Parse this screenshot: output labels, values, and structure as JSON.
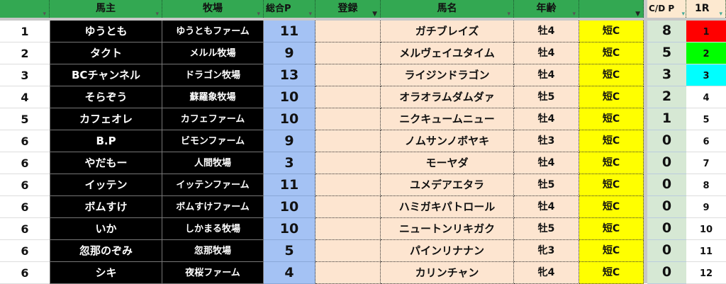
{
  "header": {
    "rank": "",
    "owner": "馬主",
    "farm": "牧場",
    "total_p": "総合P",
    "registration": "登録",
    "horse_name": "馬名",
    "age": "年齢",
    "class": "",
    "cd_p": "C/D P",
    "race_1r": "1R"
  },
  "colors": {
    "header_bg": "#33a852",
    "owner_bg": "#000000",
    "total_bg": "#a4c2f4",
    "name_bg": "#fde5d0",
    "class_bg": "#ffff00",
    "cd_bg": "#d6e8d4",
    "rank1": "#ff0000",
    "rank2": "#00ff00",
    "rank3": "#00ffff"
  },
  "rows": [
    {
      "rank": "1",
      "owner": "ゆうとも",
      "farm": "ゆうともファーム",
      "total_p": "11",
      "registration": "",
      "horse_name": "ガチブレイズ",
      "age": "牡4",
      "class": "短C",
      "cd_p": "8",
      "race_1r": "1",
      "highlight": "#ff0000"
    },
    {
      "rank": "2",
      "owner": "タクト",
      "farm": "メルル牧場",
      "total_p": "9",
      "registration": "",
      "horse_name": "メルヴェイユタイム",
      "age": "牡4",
      "class": "短C",
      "cd_p": "5",
      "race_1r": "2",
      "highlight": "#00ff00"
    },
    {
      "rank": "3",
      "owner": "BCチャンネル",
      "farm": "ドラゴン牧場",
      "total_p": "13",
      "registration": "",
      "horse_name": "ライジンドラゴン",
      "age": "牡4",
      "class": "短C",
      "cd_p": "3",
      "race_1r": "3",
      "highlight": "#00ffff"
    },
    {
      "rank": "4",
      "owner": "そらぞう",
      "farm": "蘇羅象牧場",
      "total_p": "10",
      "registration": "",
      "horse_name": "オラオラムダムダァ",
      "age": "牡5",
      "class": "短C",
      "cd_p": "2",
      "race_1r": "4"
    },
    {
      "rank": "5",
      "owner": "カフェオレ",
      "farm": "カフェファーム",
      "total_p": "10",
      "registration": "",
      "horse_name": "ニクキュームニュー",
      "age": "牡4",
      "class": "短C",
      "cd_p": "1",
      "race_1r": "5"
    },
    {
      "rank": "6",
      "owner": "B.P",
      "farm": "ビモンファーム",
      "total_p": "9",
      "registration": "",
      "horse_name": "ノムサンノボヤキ",
      "age": "牡3",
      "class": "短C",
      "cd_p": "0",
      "race_1r": "6"
    },
    {
      "rank": "6",
      "owner": "やだもー",
      "farm": "人間牧場",
      "total_p": "3",
      "registration": "",
      "horse_name": "モーヤダ",
      "age": "牡4",
      "class": "短C",
      "cd_p": "0",
      "race_1r": "7"
    },
    {
      "rank": "6",
      "owner": "イッテン",
      "farm": "イッテンファーム",
      "total_p": "11",
      "registration": "",
      "horse_name": "ユメデアエタラ",
      "age": "牡5",
      "class": "短C",
      "cd_p": "0",
      "race_1r": "8"
    },
    {
      "rank": "6",
      "owner": "ボムすけ",
      "farm": "ボムすけファーム",
      "total_p": "10",
      "registration": "",
      "horse_name": "ハミガキパトロール",
      "age": "牡4",
      "class": "短C",
      "cd_p": "0",
      "race_1r": "9"
    },
    {
      "rank": "6",
      "owner": "いか",
      "farm": "しかまる牧場",
      "total_p": "10",
      "registration": "",
      "horse_name": "ニュートンリキガク",
      "age": "牡5",
      "class": "短C",
      "cd_p": "0",
      "race_1r": "10"
    },
    {
      "rank": "6",
      "owner": "忽那のぞみ",
      "farm": "忽那牧場",
      "total_p": "5",
      "registration": "",
      "horse_name": "パインリナナン",
      "age": "牝3",
      "class": "短C",
      "cd_p": "0",
      "race_1r": "11"
    },
    {
      "rank": "6",
      "owner": "シキ",
      "farm": "夜桜ファーム",
      "total_p": "4",
      "registration": "",
      "horse_name": "カリンチャン",
      "age": "牝4",
      "class": "短C",
      "cd_p": "0",
      "race_1r": "12"
    }
  ]
}
